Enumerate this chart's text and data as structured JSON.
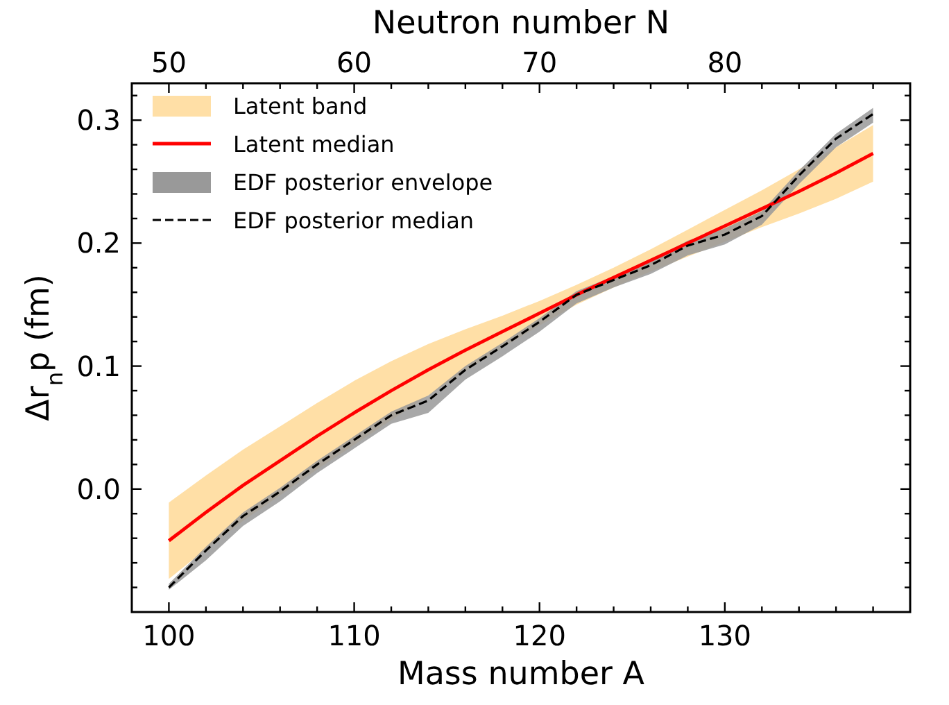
{
  "chart_data": {
    "type": "line",
    "xlabel": "Mass number A",
    "ylabel": "Δr$_{n}$p (fm)",
    "x2label": "Neutron number N",
    "annotations": [
      "Latent band",
      "EDF posterior envelope"
    ],
    "x": [
      100,
      102,
      104,
      106,
      108,
      110,
      112,
      114,
      116,
      118,
      120,
      122,
      124,
      126,
      128,
      130,
      132,
      134,
      136,
      138
    ],
    "xlim": [
      98,
      140
    ],
    "xticks": [
      {
        "value": 100,
        "label": "100"
      },
      {
        "value": 102,
        "label": null
      },
      {
        "value": 104,
        "label": null
      },
      {
        "value": 106,
        "label": null
      },
      {
        "value": 108,
        "label": null
      },
      {
        "value": 110,
        "label": "110"
      },
      {
        "value": 112,
        "label": null
      },
      {
        "value": 114,
        "label": null
      },
      {
        "value": 116,
        "label": null
      },
      {
        "value": 118,
        "label": null
      },
      {
        "value": 120,
        "label": "120"
      },
      {
        "value": 122,
        "label": null
      },
      {
        "value": 124,
        "label": null
      },
      {
        "value": 126,
        "label": null
      },
      {
        "value": 128,
        "label": null
      },
      {
        "value": 130,
        "label": "130"
      },
      {
        "value": 132,
        "label": null
      },
      {
        "value": 134,
        "label": null
      },
      {
        "value": 136,
        "label": null
      },
      {
        "value": 138,
        "label": null
      }
    ],
    "x2lim": [
      48,
      90
    ],
    "x2ticks": [
      50,
      {
        "value": 52,
        "label": null
      },
      {
        "value": 54,
        "label": null
      },
      {
        "value": 56,
        "label": null
      },
      {
        "value": 58,
        "label": null
      },
      60,
      {
        "value": 62,
        "label": null
      },
      {
        "value": 64,
        "label": null
      },
      {
        "value": 66,
        "label": null
      },
      {
        "value": 68,
        "label": null
      },
      70,
      {
        "value": 72,
        "label": null
      },
      {
        "value": 74,
        "label": null
      },
      {
        "value": 76,
        "label": null
      },
      {
        "value": 78,
        "label": null
      },
      80,
      {
        "value": 82,
        "label": null
      },
      {
        "value": 84,
        "label": null
      },
      {
        "value": 86,
        "label": null
      },
      {
        "value": 88,
        "label": null
      }
    ],
    "ylim": [
      -0.1,
      0.33
    ],
    "yticks": [
      {
        "value": -0.08,
        "label": null
      },
      {
        "value": -0.06,
        "label": null
      },
      {
        "value": -0.04,
        "label": null
      },
      {
        "value": -0.02,
        "label": null
      },
      {
        "value": 0,
        "label": "0.0"
      },
      {
        "value": 0.02,
        "label": null
      },
      {
        "value": 0.04,
        "label": null
      },
      {
        "value": 0.06,
        "label": null
      },
      {
        "value": 0.08,
        "label": null
      },
      0.1,
      {
        "value": 0.12,
        "label": null
      },
      {
        "value": 0.14,
        "label": null
      },
      {
        "value": 0.16,
        "label": null
      },
      {
        "value": 0.18,
        "label": null
      },
      0.2,
      {
        "value": 0.22,
        "label": null
      },
      {
        "value": 0.24,
        "label": null
      },
      {
        "value": 0.26,
        "label": null
      },
      {
        "value": 0.28,
        "label": null
      },
      0.3,
      {
        "value": 0.32,
        "label": null
      }
    ],
    "grid": false,
    "legend": "top left",
    "series": [
      {
        "name": "Latent median",
        "color": "#ff0000",
        "line_style": "solid",
        "values": [
          -0.042,
          -0.019,
          0.003,
          0.023,
          0.043,
          0.062,
          0.08,
          0.097,
          0.113,
          0.128,
          0.143,
          0.158,
          0.172,
          0.186,
          0.2,
          0.214,
          0.228,
          0.242,
          0.257,
          0.273
        ],
        "lower": [
          -0.073,
          -0.049,
          -0.026,
          -0.005,
          0.016,
          0.036,
          0.056,
          0.076,
          0.096,
          0.115,
          0.133,
          0.15,
          0.164,
          0.177,
          0.189,
          0.201,
          0.213,
          0.224,
          0.236,
          0.25
        ],
        "upper": [
          -0.011,
          0.011,
          0.032,
          0.051,
          0.07,
          0.088,
          0.104,
          0.118,
          0.13,
          0.141,
          0.153,
          0.166,
          0.18,
          0.195,
          0.211,
          0.227,
          0.243,
          0.26,
          0.278,
          0.296
        ]
      },
      {
        "name": "EDF posterior median",
        "color": "#000000",
        "line_style": "dashed",
        "values": [
          -0.08,
          -0.05,
          -0.022,
          -0.002,
          0.02,
          0.04,
          0.06,
          0.072,
          0.097,
          0.116,
          0.136,
          0.158,
          0.17,
          0.182,
          0.198,
          0.207,
          0.222,
          0.255,
          0.285,
          0.305
        ],
        "lower": [
          -0.082,
          -0.058,
          -0.03,
          -0.01,
          0.013,
          0.033,
          0.053,
          0.062,
          0.089,
          0.108,
          0.128,
          0.151,
          0.164,
          0.175,
          0.19,
          0.199,
          0.215,
          0.248,
          0.278,
          0.298
        ],
        "upper": [
          -0.077,
          -0.047,
          -0.019,
          0.001,
          0.023,
          0.043,
          0.063,
          0.076,
          0.1,
          0.119,
          0.139,
          0.161,
          0.173,
          0.186,
          0.202,
          0.212,
          0.226,
          0.259,
          0.289,
          0.31
        ]
      }
    ]
  }
}
